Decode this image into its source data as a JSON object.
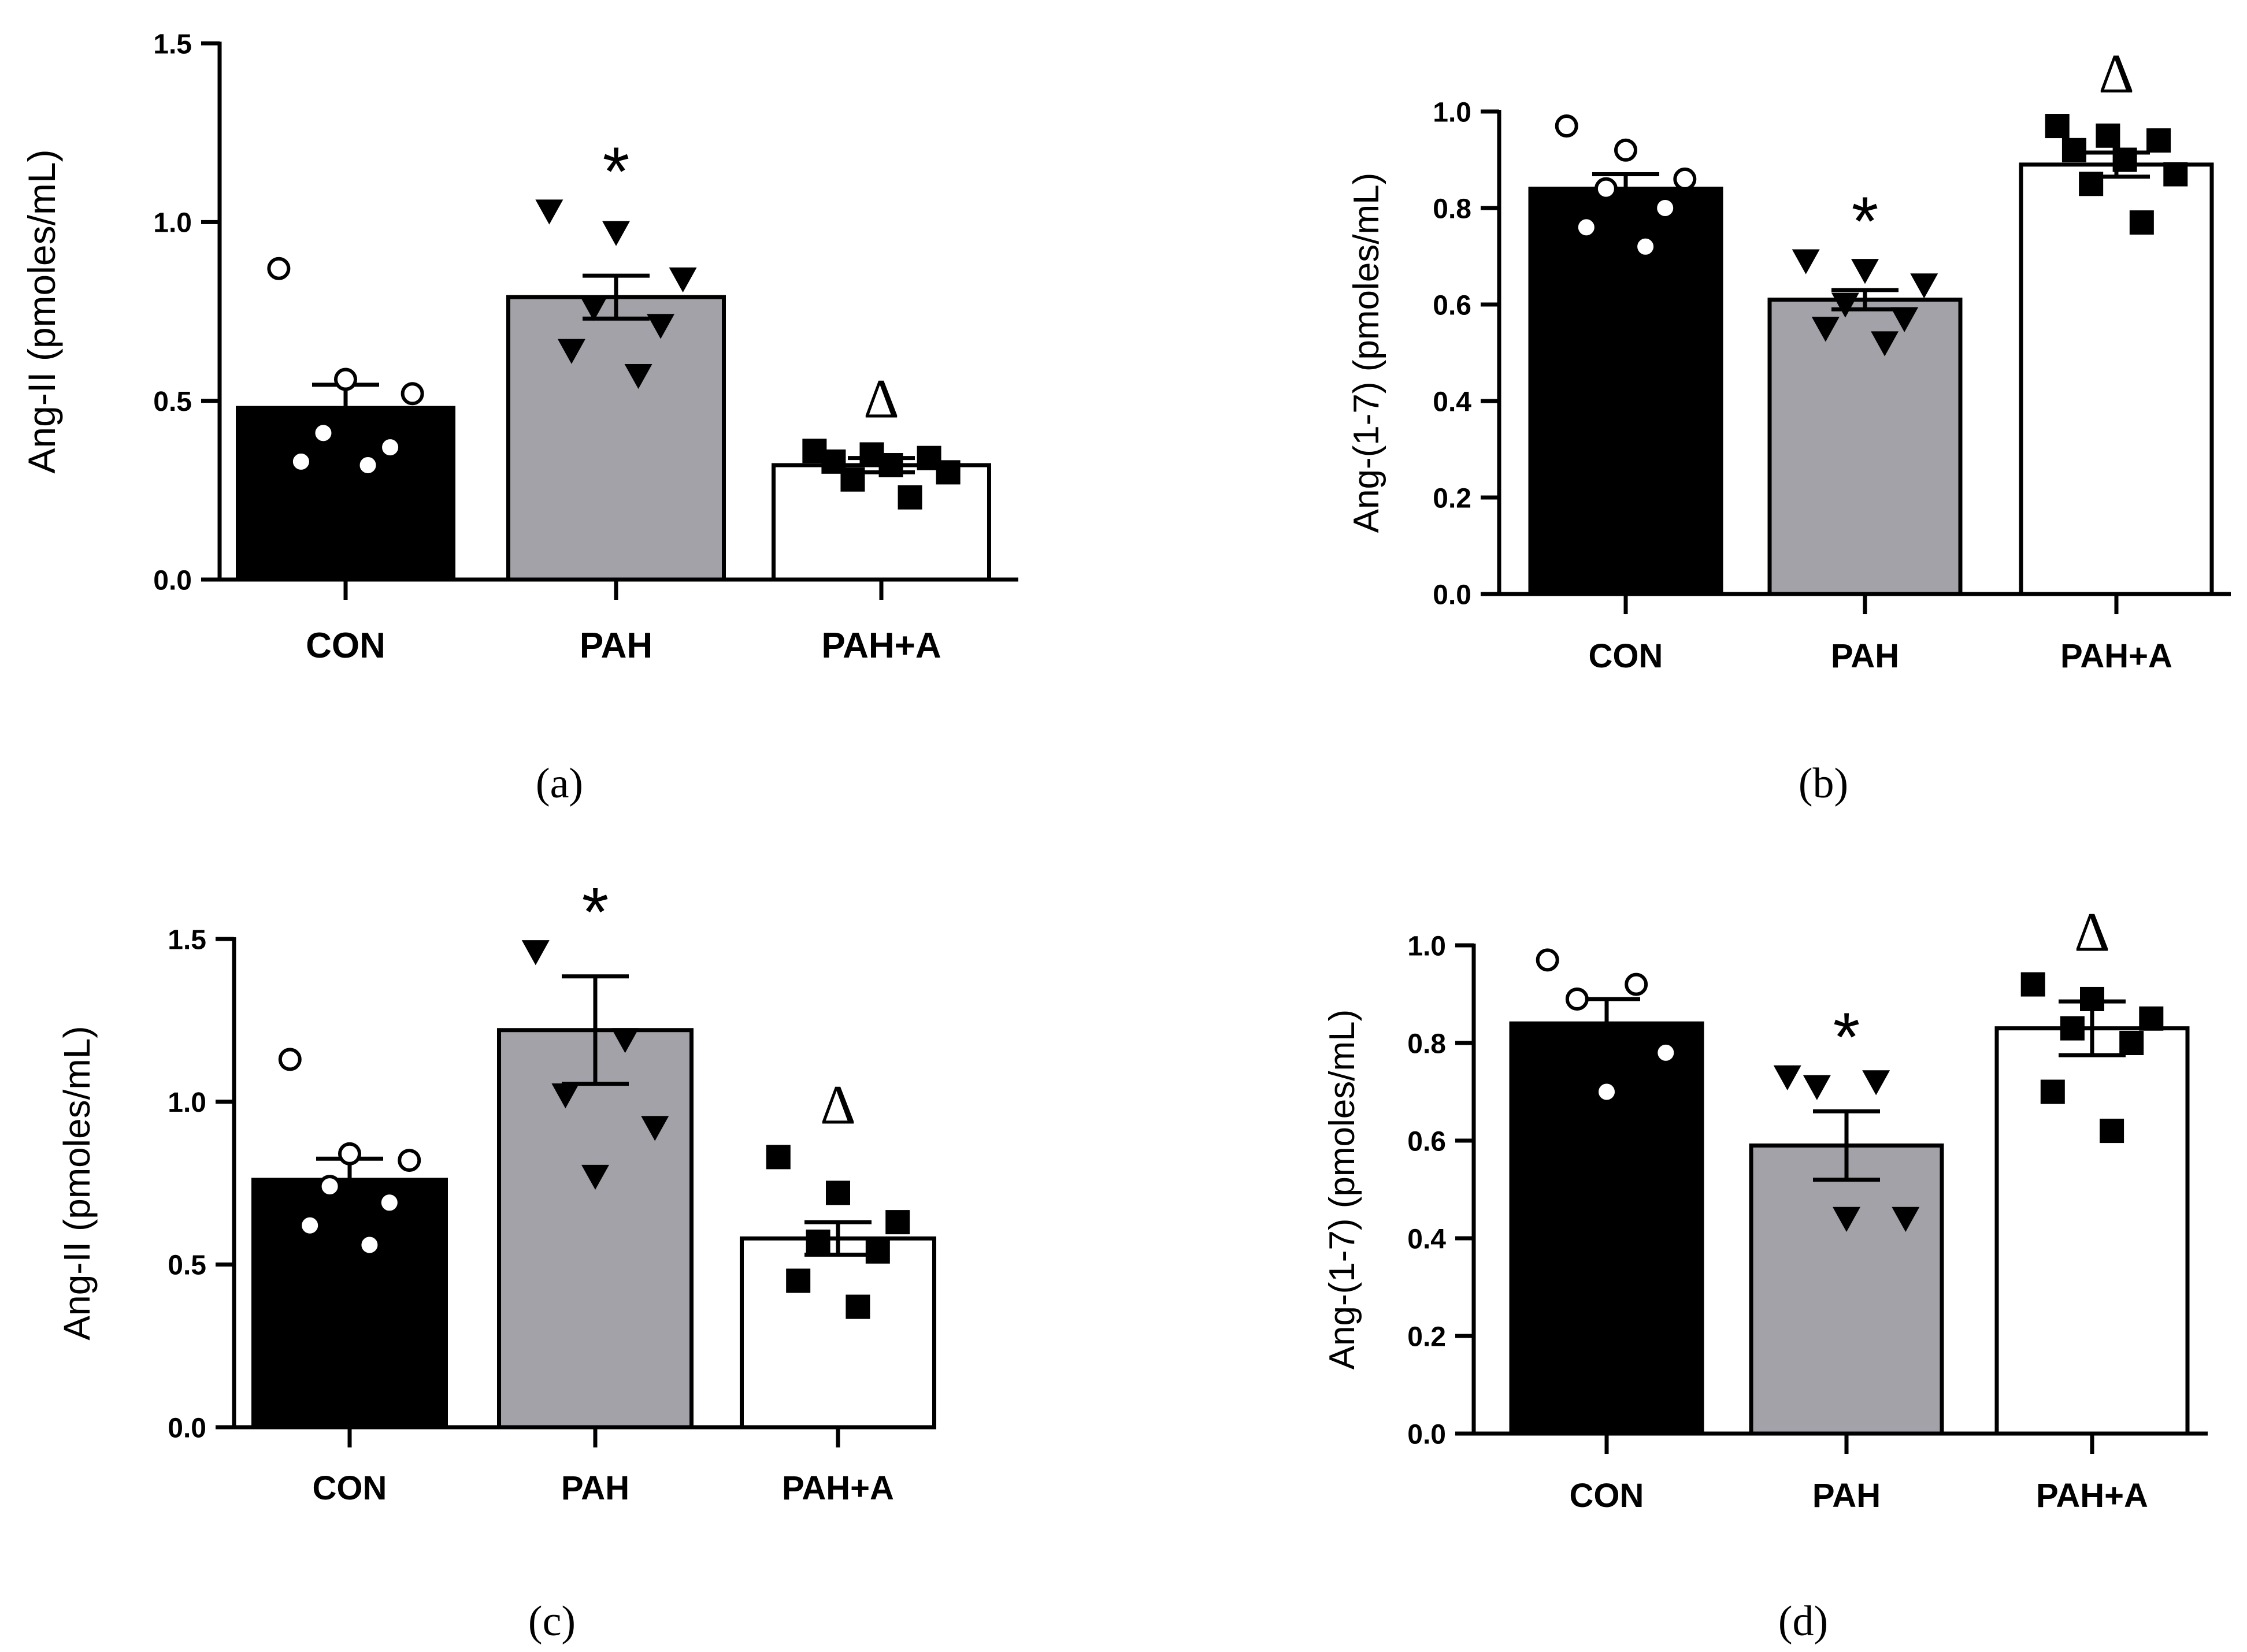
{
  "chart_data": [
    {
      "type": "bar",
      "panel_caption": "(a)",
      "ylabel": "Ang-II (pmoles/mL)",
      "xlabel": "",
      "categories": [
        "CON",
        "PAH",
        "PAH+A"
      ],
      "ylim": [
        0,
        1.5
      ],
      "yticks": [
        0.0,
        0.5,
        1.0,
        1.5
      ],
      "tick_labels": [
        "0.0",
        "0.5",
        "1.0",
        "1.5"
      ],
      "fills": [
        "#000000",
        "#a3a2a8",
        "#ffffff"
      ],
      "markers": [
        "circle-open",
        "triangle-down",
        "square"
      ],
      "values": [
        0.48,
        0.79,
        0.32
      ],
      "sem": [
        0.065,
        0.06,
        0.02
      ],
      "points": [
        [
          0.87,
          0.56,
          0.52,
          0.41,
          0.37,
          0.33,
          0.32
        ],
        [
          1.03,
          0.97,
          0.84,
          0.76,
          0.71,
          0.64,
          0.57
        ],
        [
          0.36,
          0.35,
          0.34,
          0.33,
          0.32,
          0.3,
          0.28,
          0.23
        ]
      ],
      "annotations": [
        "",
        "*",
        "Δ"
      ]
    },
    {
      "type": "bar",
      "panel_caption": "(b)",
      "ylabel": "Ang-(1-7) (pmoles/mL)",
      "xlabel": "",
      "categories": [
        "CON",
        "PAH",
        "PAH+A"
      ],
      "ylim": [
        0,
        1.0
      ],
      "yticks": [
        0.0,
        0.2,
        0.4,
        0.6,
        0.8,
        1.0
      ],
      "tick_labels": [
        "0.0",
        "0.2",
        "0.4",
        "0.6",
        "0.8",
        "1.0"
      ],
      "fills": [
        "#000000",
        "#a3a2a8",
        "#ffffff"
      ],
      "markers": [
        "circle-open",
        "triangle-down",
        "square"
      ],
      "values": [
        0.84,
        0.61,
        0.89
      ],
      "sem": [
        0.03,
        0.02,
        0.025
      ],
      "points": [
        [
          0.97,
          0.92,
          0.86,
          0.84,
          0.8,
          0.76,
          0.72
        ],
        [
          0.69,
          0.67,
          0.64,
          0.6,
          0.57,
          0.55,
          0.52
        ],
        [
          0.97,
          0.95,
          0.94,
          0.92,
          0.9,
          0.87,
          0.85,
          0.77
        ]
      ],
      "annotations": [
        "",
        "*",
        "Δ"
      ]
    },
    {
      "type": "bar",
      "panel_caption": "(c)",
      "ylabel": "Ang-II (pmoles/mL)",
      "xlabel": "",
      "categories": [
        "CON",
        "PAH",
        "PAH+A"
      ],
      "ylim": [
        0,
        1.5
      ],
      "yticks": [
        0.0,
        0.5,
        1.0,
        1.5
      ],
      "tick_labels": [
        "0.0",
        "0.5",
        "1.0",
        "1.5"
      ],
      "fills": [
        "#000000",
        "#a3a2a8",
        "#ffffff"
      ],
      "markers": [
        "circle-open",
        "triangle-down",
        "square"
      ],
      "values": [
        0.76,
        1.22,
        0.58
      ],
      "sem": [
        0.065,
        0.165,
        0.05
      ],
      "points": [
        [
          1.13,
          0.84,
          0.82,
          0.74,
          0.69,
          0.62,
          0.56
        ],
        [
          1.46,
          1.19,
          1.02,
          0.92,
          0.77
        ],
        [
          0.83,
          0.72,
          0.63,
          0.57,
          0.54,
          0.45,
          0.37
        ]
      ],
      "annotations": [
        "",
        "*",
        "Δ"
      ]
    },
    {
      "type": "bar",
      "panel_caption": "(d)",
      "ylabel": "Ang-(1-7) (pmoles/mL)",
      "xlabel": "",
      "categories": [
        "CON",
        "PAH",
        "PAH+A"
      ],
      "ylim": [
        0,
        1.0
      ],
      "yticks": [
        0.0,
        0.2,
        0.4,
        0.6,
        0.8,
        1.0
      ],
      "tick_labels": [
        "0.0",
        "0.2",
        "0.4",
        "0.6",
        "0.8",
        "1.0"
      ],
      "fills": [
        "#000000",
        "#a3a2a8",
        "#ffffff"
      ],
      "markers": [
        "circle-open",
        "triangle-down",
        "square"
      ],
      "values": [
        0.84,
        0.59,
        0.83
      ],
      "sem": [
        0.05,
        0.07,
        0.055
      ],
      "points": [
        [
          0.97,
          0.92,
          0.89,
          0.78,
          0.7
        ],
        [
          0.73,
          0.72,
          0.71,
          0.44,
          0.44
        ],
        [
          0.92,
          0.89,
          0.85,
          0.83,
          0.8,
          0.7,
          0.62
        ]
      ],
      "annotations": [
        "",
        "*",
        "Δ"
      ]
    }
  ]
}
